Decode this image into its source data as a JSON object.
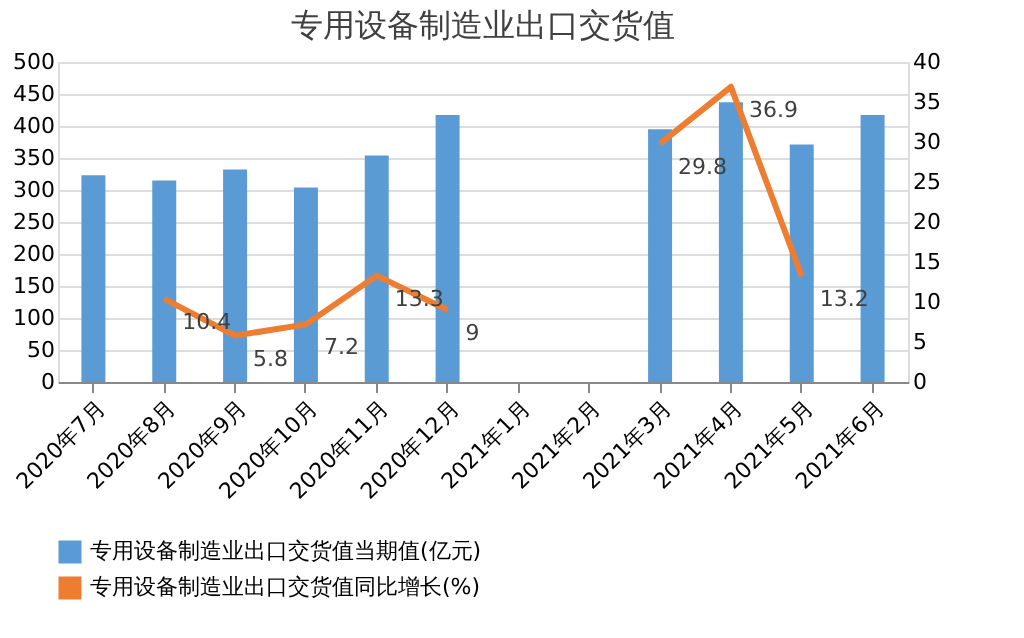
{
  "chart_data": {
    "type": "bar",
    "title": "专用设备制造业出口交货值",
    "categories": [
      "2020年7月",
      "2020年8月",
      "2020年9月",
      "2020年10月",
      "2020年11月",
      "2020年12月",
      "2021年1月",
      "2021年2月",
      "2021年3月",
      "2021年4月",
      "2021年5月",
      "2021年6月"
    ],
    "series": [
      {
        "name": "专用设备制造业出口交货值当期值(亿元)",
        "color": "#5b9bd5",
        "values": [
          323,
          315,
          332,
          304,
          354,
          417,
          null,
          null,
          395,
          437,
          371,
          417
        ]
      },
      {
        "name": "专用设备制造业出口交货值同比增长(%)",
        "color": "#ed7d31",
        "type": "line",
        "axis": "y2",
        "values": [
          null,
          10.4,
          5.8,
          7.2,
          13.3,
          9,
          null,
          null,
          29.8,
          36.9,
          13.2,
          null
        ],
        "value_labels": [
          null,
          "10.4",
          "5.8",
          "7.2",
          "13.3",
          "9",
          null,
          null,
          "29.8",
          "36.9",
          "13.2",
          null
        ]
      }
    ],
    "ylim": [
      0,
      500
    ],
    "yticks": [
      0,
      50,
      100,
      150,
      200,
      250,
      300,
      350,
      400,
      450,
      500
    ],
    "y2lim": [
      0,
      40
    ],
    "y2ticks": [
      0,
      5,
      10,
      15,
      20,
      25,
      30,
      35,
      40
    ],
    "grid": "y",
    "legend": "bottom"
  }
}
